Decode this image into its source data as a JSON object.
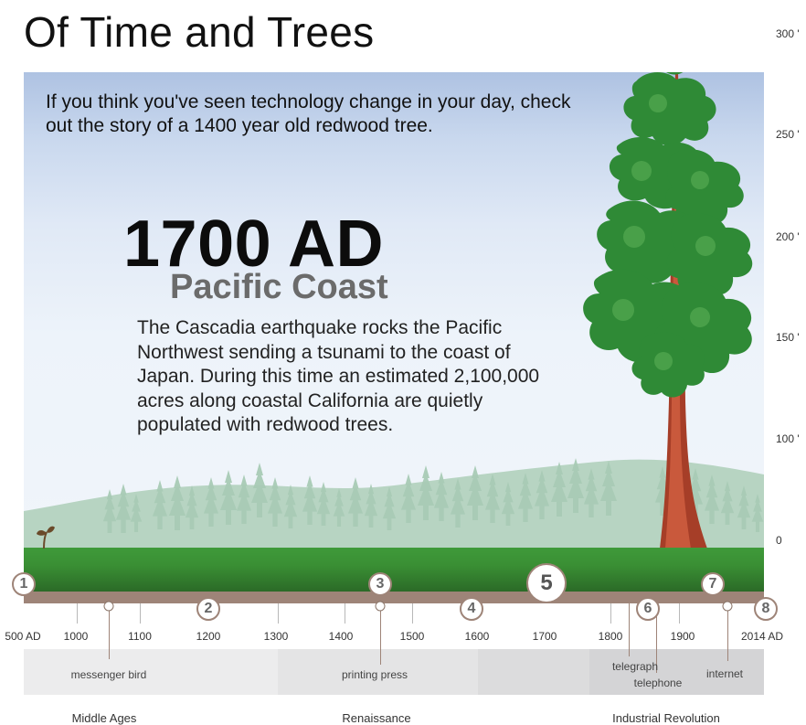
{
  "header": {
    "title": "Of Time and Trees"
  },
  "intro": "If you think you've seen technology change in your day, check out the story of a 1400 year old redwood tree.",
  "current": {
    "year": "1700 AD",
    "place": "Pacific Coast",
    "story": "The Cascadia earthquake rocks the Pacific Northwest sending a tsunami to the coast of Japan. During this time an estimated 2,100,000 acres along coastal California are quietly populated with redwood trees."
  },
  "height_scale": [
    "300 '",
    "250 '",
    "200 '",
    "150 '",
    "100 '",
    "0"
  ],
  "timeline": {
    "axis_labels": [
      "500 AD",
      "1000",
      "1100",
      "1200",
      "1300",
      "1400",
      "1500",
      "1600",
      "1700",
      "1800",
      "1900",
      "2014 AD"
    ],
    "markers": [
      "1",
      "2",
      "3",
      "4",
      "5",
      "6",
      "7",
      "8"
    ],
    "active_marker": "5",
    "events": [
      "messenger bird",
      "printing press",
      "telegraph",
      "telephone",
      "internet"
    ],
    "eras": [
      "Middle Ages",
      "Renaissance",
      "Industrial Revolution"
    ]
  },
  "colors": {
    "sky_top": "#aec2e2",
    "ground": "#3f9a3a",
    "rail": "#9e8478",
    "trunk": "#b3452e",
    "foliage": "#2f8a36",
    "distant_forest": "#a9cbb6"
  }
}
